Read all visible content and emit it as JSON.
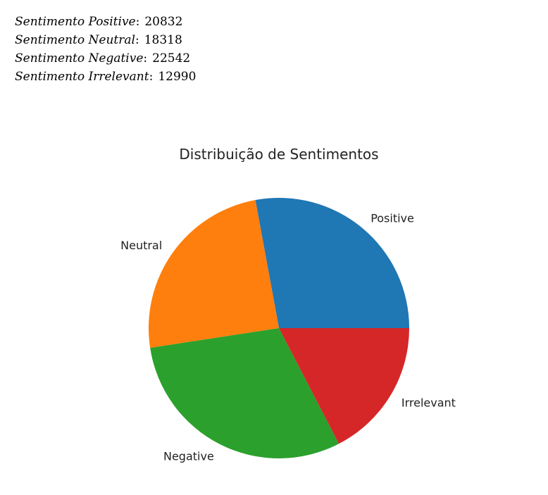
{
  "stats": [
    {
      "label": "Sentimento Positive",
      "value": "20832"
    },
    {
      "label": "Sentimento Neutral",
      "value": "18318"
    },
    {
      "label": "Sentimento Negative",
      "value": "22542"
    },
    {
      "label": "Sentimento Irrelevant",
      "value": "12990"
    }
  ],
  "chart_data": {
    "type": "pie",
    "title": "Distribuição de Sentimentos",
    "categories": [
      "Positive",
      "Neutral",
      "Negative",
      "Irrelevant"
    ],
    "values": [
      20832,
      18318,
      22542,
      12990
    ],
    "colors": [
      "#1f77b4",
      "#ff7f0e",
      "#2ca02c",
      "#d62728"
    ],
    "start_angle_deg": 0,
    "direction": "counterclockwise"
  }
}
